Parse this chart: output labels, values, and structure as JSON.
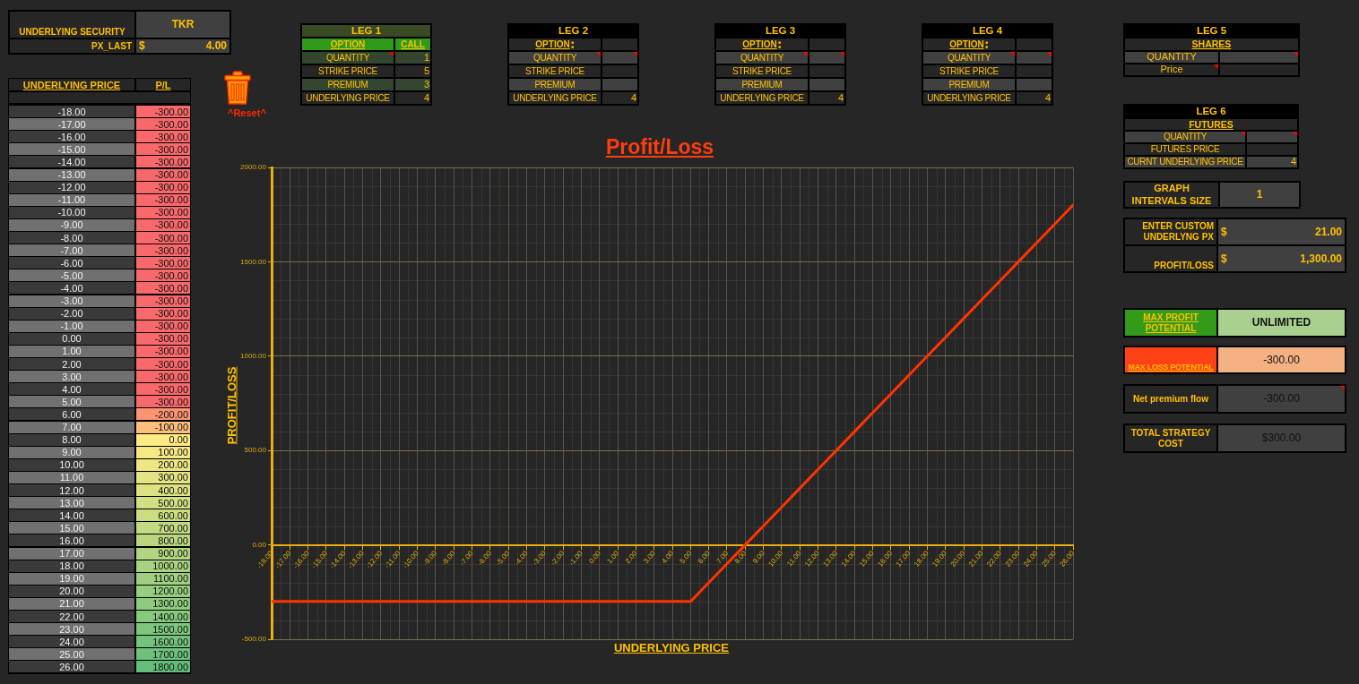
{
  "chart_data": [
    {
      "type": "line",
      "title": "Profit/Loss",
      "xlabel": "UNDERLYING PRICE",
      "ylabel": "PROFIT/LOSS",
      "x": [
        -18,
        -17,
        -16,
        -15,
        -14,
        -13,
        -12,
        -11,
        -10,
        -9,
        -8,
        -7,
        -6,
        -5,
        -4,
        -3,
        -2,
        -1,
        0,
        1,
        2,
        3,
        4,
        5,
        6,
        7,
        8,
        9,
        10,
        11,
        12,
        13,
        14,
        15,
        16,
        17,
        18,
        19,
        20,
        21,
        22,
        23,
        24,
        25,
        26
      ],
      "values": [
        -300,
        -300,
        -300,
        -300,
        -300,
        -300,
        -300,
        -300,
        -300,
        -300,
        -300,
        -300,
        -300,
        -300,
        -300,
        -300,
        -300,
        -300,
        -300,
        -300,
        -300,
        -300,
        -300,
        -300,
        -200,
        -100,
        0,
        100,
        200,
        300,
        400,
        500,
        600,
        700,
        800,
        900,
        1000,
        1100,
        1200,
        1300,
        1400,
        1500,
        1600,
        1700,
        1800
      ],
      "color": "#ff3300",
      "marker": "none",
      "grid": true,
      "xlim": [
        -18,
        26
      ],
      "ylim": [
        -500,
        2000
      ],
      "xticks": [
        {
          "value": -18,
          "label": "-18.00"
        },
        {
          "value": -17,
          "label": "-17.00"
        },
        {
          "value": -16,
          "label": "-16.00"
        },
        {
          "value": -15,
          "label": "-15.00"
        },
        {
          "value": -14,
          "label": "-14.00"
        },
        {
          "value": -13,
          "label": "-13.00"
        },
        {
          "value": -12,
          "label": "-12.00"
        },
        {
          "value": -11,
          "label": "-11.00"
        },
        {
          "value": -10,
          "label": "-10.00"
        },
        {
          "value": -9,
          "label": "-9.00"
        },
        {
          "value": -8,
          "label": "-8.00"
        },
        {
          "value": -7,
          "label": "-7.00"
        },
        {
          "value": -6,
          "label": "-6.00"
        },
        {
          "value": -5,
          "label": "-5.00"
        },
        {
          "value": -4,
          "label": "-4.00"
        },
        {
          "value": -3,
          "label": "-3.00"
        },
        {
          "value": -2,
          "label": "-2.00"
        },
        {
          "value": -1,
          "label": "-1.00"
        },
        {
          "value": 0,
          "label": "0.00"
        },
        {
          "value": 1,
          "label": "1.00"
        },
        {
          "value": 2,
          "label": "2.00"
        },
        {
          "value": 3,
          "label": "3.00"
        },
        {
          "value": 4,
          "label": "4.00"
        },
        {
          "value": 5,
          "label": "5.00"
        },
        {
          "value": 6,
          "label": "6.00"
        },
        {
          "value": 7,
          "label": "7.00"
        },
        {
          "value": 8,
          "label": "8.00"
        },
        {
          "value": 9,
          "label": "9.00"
        },
        {
          "value": 10,
          "label": "10.00"
        },
        {
          "value": 11,
          "label": "11.00"
        },
        {
          "value": 12,
          "label": "12.00"
        },
        {
          "value": 13,
          "label": "13.00"
        },
        {
          "value": 14,
          "label": "14.00"
        },
        {
          "value": 15,
          "label": "15.00"
        },
        {
          "value": 16,
          "label": "16.00"
        },
        {
          "value": 17,
          "label": "17.00"
        },
        {
          "value": 18,
          "label": "18.00"
        },
        {
          "value": 19,
          "label": "19.00"
        },
        {
          "value": 20,
          "label": "20.00"
        },
        {
          "value": 21,
          "label": "21.00"
        },
        {
          "value": 22,
          "label": "22.00"
        },
        {
          "value": 23,
          "label": "23.00"
        },
        {
          "value": 24,
          "label": "24.00"
        },
        {
          "value": 25,
          "label": "25.00"
        },
        {
          "value": 26,
          "label": "26.00"
        }
      ],
      "yticks": [
        {
          "value": -500,
          "label": "-500.00"
        },
        {
          "value": 0,
          "label": "0.00"
        },
        {
          "value": 500,
          "label": "500.00"
        },
        {
          "value": 1000,
          "label": "1000.00"
        },
        {
          "value": 1500,
          "label": "1500.00"
        },
        {
          "value": 2000,
          "label": "2000.00"
        }
      ]
    },
    {
      "type": "heatmap",
      "ylabel": "UNDERLYING PRICE",
      "categories": [
        "P/L"
      ],
      "y_categories": [
        "-18.00",
        "-17.00",
        "-16.00",
        "-15.00",
        "-14.00",
        "-13.00",
        "-12.00",
        "-11.00",
        "-10.00",
        "-9.00",
        "-8.00",
        "-7.00",
        "-6.00",
        "-5.00",
        "-4.00",
        "-3.00",
        "-2.00",
        "-1.00",
        "0.00",
        "1.00",
        "2.00",
        "3.00",
        "4.00",
        "5.00",
        "6.00",
        "7.00",
        "8.00",
        "9.00",
        "10.00",
        "11.00",
        "12.00",
        "13.00",
        "14.00",
        "15.00",
        "16.00",
        "17.00",
        "18.00",
        "19.00",
        "20.00",
        "21.00",
        "22.00",
        "23.00",
        "24.00",
        "25.00",
        "26.00"
      ],
      "cells": [
        [
          -300
        ],
        [
          -300
        ],
        [
          -300
        ],
        [
          -300
        ],
        [
          -300
        ],
        [
          -300
        ],
        [
          -300
        ],
        [
          -300
        ],
        [
          -300
        ],
        [
          -300
        ],
        [
          -300
        ],
        [
          -300
        ],
        [
          -300
        ],
        [
          -300
        ],
        [
          -300
        ],
        [
          -300
        ],
        [
          -300
        ],
        [
          -300
        ],
        [
          -300
        ],
        [
          -300
        ],
        [
          -300
        ],
        [
          -300
        ],
        [
          -300
        ],
        [
          -300
        ],
        [
          -200
        ],
        [
          -100
        ],
        [
          0
        ],
        [
          100
        ],
        [
          200
        ],
        [
          300
        ],
        [
          400
        ],
        [
          500
        ],
        [
          600
        ],
        [
          700
        ],
        [
          800
        ],
        [
          900
        ],
        [
          1000
        ],
        [
          1100
        ],
        [
          1200
        ],
        [
          1300
        ],
        [
          1400
        ],
        [
          1500
        ],
        [
          1600
        ],
        [
          1700
        ],
        [
          1800
        ]
      ],
      "cell_labels": [
        [
          "-300.00"
        ],
        [
          "-300.00"
        ],
        [
          "-300.00"
        ],
        [
          "-300.00"
        ],
        [
          "-300.00"
        ],
        [
          "-300.00"
        ],
        [
          "-300.00"
        ],
        [
          "-300.00"
        ],
        [
          "-300.00"
        ],
        [
          "-300.00"
        ],
        [
          "-300.00"
        ],
        [
          "-300.00"
        ],
        [
          "-300.00"
        ],
        [
          "-300.00"
        ],
        [
          "-300.00"
        ],
        [
          "-300.00"
        ],
        [
          "-300.00"
        ],
        [
          "-300.00"
        ],
        [
          "-300.00"
        ],
        [
          "-300.00"
        ],
        [
          "-300.00"
        ],
        [
          "-300.00"
        ],
        [
          "-300.00"
        ],
        [
          "-300.00"
        ],
        [
          "-200.00"
        ],
        [
          "-100.00"
        ],
        [
          "0.00"
        ],
        [
          "100.00"
        ],
        [
          "200.00"
        ],
        [
          "300.00"
        ],
        [
          "400.00"
        ],
        [
          "500.00"
        ],
        [
          "600.00"
        ],
        [
          "700.00"
        ],
        [
          "800.00"
        ],
        [
          "900.00"
        ],
        [
          "1000.00"
        ],
        [
          "1100.00"
        ],
        [
          "1200.00"
        ],
        [
          "1300.00"
        ],
        [
          "1400.00"
        ],
        [
          "1500.00"
        ],
        [
          "1600.00"
        ],
        [
          "1700.00"
        ],
        [
          "1800.00"
        ]
      ]
    },
    {
      "type": "other",
      "categories": [
        "UNDERLYING SECURITY",
        "PX_LAST"
      ],
      "value_labels": [
        "TKR",
        "$ 4.00"
      ]
    },
    {
      "type": "other",
      "annotations": [
        "^Reset^"
      ]
    },
    {
      "type": "other",
      "title": "LEG 1",
      "categories": [
        "OPTION",
        "QUANTITY",
        "STRIKE PRICE",
        "PREMIUM",
        "UNDERLYING PRICE"
      ],
      "value_labels": [
        "CALL",
        "1",
        "5",
        "3",
        "4"
      ]
    },
    {
      "type": "other",
      "title": "LEG 2",
      "categories": [
        "OPTION",
        "QUANTITY",
        "STRIKE PRICE",
        "PREMIUM",
        "UNDERLYING PRICE"
      ],
      "value_labels": [
        null,
        null,
        null,
        null,
        "4"
      ]
    },
    {
      "type": "other",
      "title": "LEG 3",
      "categories": [
        "OPTION",
        "QUANTITY",
        "STRIKE PRICE",
        "PREMIUM",
        "UNDERLYING PRICE"
      ],
      "value_labels": [
        null,
        null,
        null,
        null,
        "4"
      ]
    },
    {
      "type": "other",
      "title": "LEG 4",
      "categories": [
        "OPTION",
        "QUANTITY",
        "STRIKE PRICE",
        "PREMIUM",
        "UNDERLYING PRICE"
      ],
      "value_labels": [
        null,
        null,
        null,
        null,
        "4"
      ]
    },
    {
      "type": "other",
      "title": "LEG 5",
      "subtitle": "SHARES",
      "categories": [
        "QUANTITY",
        "Price"
      ]
    },
    {
      "type": "other",
      "title": "LEG 6",
      "subtitle": "FUTURES",
      "categories": [
        "QUANTITY",
        "FUTURES PRICE",
        "CURNT UNDERLYING PRICE"
      ],
      "value_labels": [
        null,
        null,
        "4"
      ]
    },
    {
      "type": "other",
      "categories": [
        "GRAPH INTERVALS SIZE"
      ],
      "value_labels": [
        "1"
      ]
    },
    {
      "type": "other",
      "categories": [
        "ENTER CUSTOM UNDERLYNG PX",
        "PROFIT/LOSS"
      ],
      "value_labels": [
        "$ 21.00",
        "$ 1,300.00"
      ]
    },
    {
      "type": "other",
      "categories": [
        "MAX PROFIT POTENTIAL"
      ],
      "value_labels": [
        "UNLIMITED"
      ]
    },
    {
      "type": "other",
      "categories": [
        "MAX LOSS POTENTIAL"
      ],
      "value_labels": [
        "-300.00"
      ]
    },
    {
      "type": "other",
      "categories": [
        "Net premium flow"
      ],
      "value_labels": [
        "-300.00"
      ]
    },
    {
      "type": "other",
      "categories": [
        "TOTAL STRATEGY COST"
      ],
      "value_labels": [
        "$300.00"
      ]
    }
  ]
}
